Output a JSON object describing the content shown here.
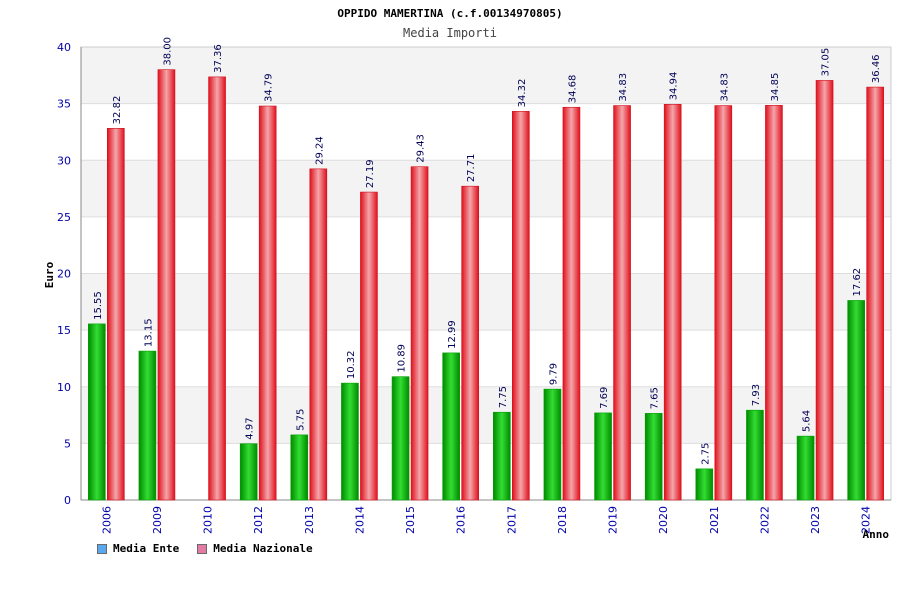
{
  "chart_data": {
    "type": "bar",
    "title": "OPPIDO MAMERTINA (c.f.00134970805)",
    "subtitle": "Media Importi",
    "xlabel": "Anno",
    "ylabel": "Euro",
    "ylim": [
      0,
      40
    ],
    "yticks": [
      "0",
      "5",
      "10",
      "15",
      "20",
      "25",
      "30",
      "35",
      "40"
    ],
    "categories": [
      "2006",
      "2009",
      "2010",
      "2012",
      "2013",
      "2014",
      "2015",
      "2016",
      "2017",
      "2018",
      "2019",
      "2020",
      "2021",
      "2022",
      "2023",
      "2024"
    ],
    "series": [
      {
        "name": "Media Ente",
        "values": [
          15.55,
          13.15,
          null,
          4.97,
          5.75,
          10.32,
          10.89,
          12.99,
          7.75,
          9.79,
          7.69,
          7.65,
          2.75,
          7.93,
          5.64,
          17.62
        ],
        "labels": [
          "15.55",
          "13.15",
          "",
          "4.97",
          "5.75",
          "10.32",
          "10.89",
          "12.99",
          "7.75",
          "9.79",
          "7.69",
          "7.65",
          "2.75",
          "7.93",
          "5.64",
          "17.62"
        ],
        "color": "#00bb00",
        "legend_color": "#5aa9ef"
      },
      {
        "name": "Media Nazionale",
        "values": [
          32.82,
          38.0,
          37.36,
          34.79,
          29.24,
          27.19,
          29.43,
          27.71,
          34.32,
          34.68,
          34.83,
          34.94,
          34.83,
          34.85,
          37.05,
          36.46
        ],
        "labels": [
          "32.82",
          "38.00",
          "37.36",
          "34.79",
          "29.24",
          "27.19",
          "29.43",
          "27.71",
          "34.32",
          "34.68",
          "34.83",
          "34.94",
          "34.83",
          "34.85",
          "37.05",
          "36.46"
        ],
        "color": "#ee1c2a",
        "legend_color": "#e37ba6"
      }
    ],
    "grid": true,
    "legend_position": "bottom-left"
  }
}
